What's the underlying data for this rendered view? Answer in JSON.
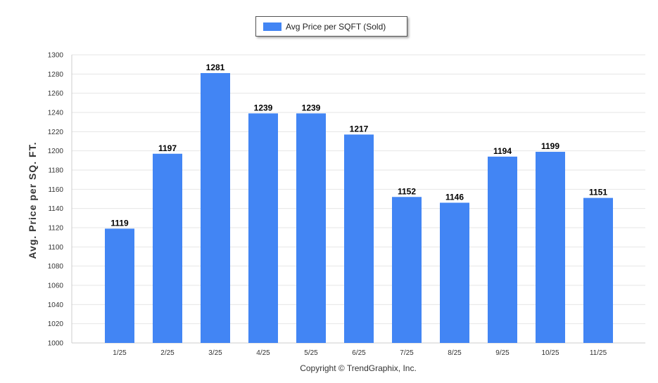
{
  "chart_data": {
    "type": "bar",
    "categories": [
      "1/25",
      "2/25",
      "3/25",
      "4/25",
      "5/25",
      "6/25",
      "7/25",
      "8/25",
      "9/25",
      "10/25",
      "11/25"
    ],
    "series": [
      {
        "name": "Avg Price per SQFT (Sold)",
        "values": [
          1119,
          1197,
          1281,
          1239,
          1239,
          1217,
          1152,
          1146,
          1194,
          1199,
          1151
        ],
        "color": "#4285f4"
      }
    ],
    "ylabel": "Avg. Price per SQ. FT.",
    "ylim": [
      1000,
      1300
    ],
    "yticks": [
      1000,
      1020,
      1040,
      1060,
      1080,
      1100,
      1120,
      1140,
      1160,
      1180,
      1200,
      1220,
      1240,
      1260,
      1280,
      1300
    ],
    "grid": true,
    "legend_position": "top-center",
    "data_labels": true
  },
  "footer": {
    "copyright": "Copyright © TrendGraphix, Inc."
  }
}
